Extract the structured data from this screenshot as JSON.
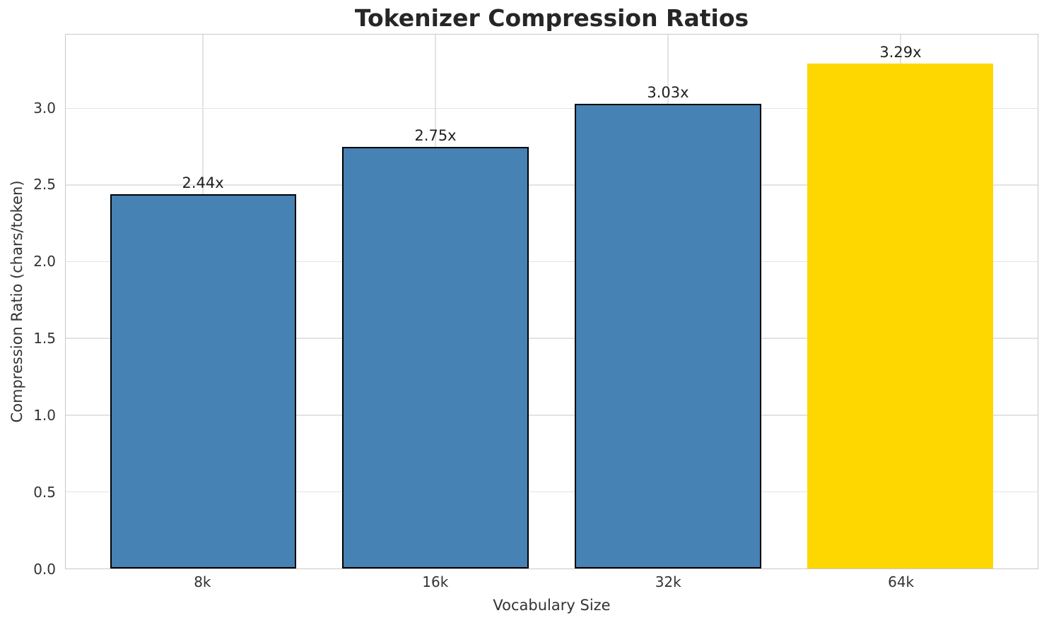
{
  "chart_data": {
    "type": "bar",
    "title": "Tokenizer Compression Ratios",
    "xlabel": "Vocabulary Size",
    "ylabel": "Compression Ratio (chars/token)",
    "categories": [
      "8k",
      "16k",
      "32k",
      "64k"
    ],
    "values": [
      2.44,
      2.75,
      3.03,
      3.29
    ],
    "value_labels": [
      "2.44x",
      "2.75x",
      "3.03x",
      "3.29x"
    ],
    "bar_colors": [
      "#4682B4",
      "#4682B4",
      "#4682B4",
      "#FFD700"
    ],
    "bar_edge_colors": [
      "#000000",
      "#000000",
      "#000000",
      "none"
    ],
    "highlight_index": 3,
    "ylim": [
      0,
      3.48
    ],
    "yticks": [
      0.0,
      0.5,
      1.0,
      1.5,
      2.0,
      2.5,
      3.0
    ],
    "ytick_labels": [
      "0.0",
      "0.5",
      "1.0",
      "1.5",
      "2.0",
      "2.5",
      "3.0"
    ],
    "grid": true,
    "legend": "none"
  },
  "colors": {
    "bar_blue": "#4682B4",
    "bar_gold": "#FFD700",
    "bar_edge": "#000000",
    "grid": "#e3e3e3",
    "spine": "#c9c9c9",
    "text": "#262626"
  }
}
